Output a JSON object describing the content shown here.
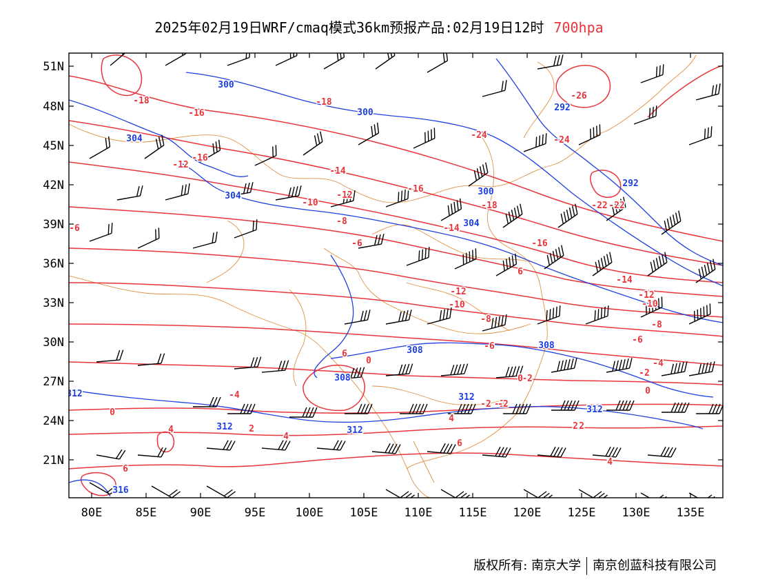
{
  "header": {
    "title": "2025年02月19日WRF/cmaq模式36km预报产品:02月19日12时",
    "level": "700hpa"
  },
  "axes": {
    "lat_labels": [
      "51N",
      "48N",
      "45N",
      "42N",
      "39N",
      "36N",
      "33N",
      "30N",
      "27N",
      "24N",
      "21N"
    ],
    "lon_labels": [
      "80E",
      "85E",
      "90E",
      "95E",
      "100E",
      "105E",
      "110E",
      "115E",
      "120E",
      "125E",
      "130E",
      "135E"
    ]
  },
  "colors": {
    "temperature_contour": "#e8343a",
    "geopotential_contour": "#1e3fe0",
    "boundary": "#e09040",
    "wind_barb": "#000000",
    "level_text": "#e8343a"
  },
  "contour_labels": {
    "temperature": [
      "-18",
      "-16",
      "-18",
      "-16",
      "-12",
      "-14",
      "-10",
      "-12",
      "-16",
      "-14",
      "-18",
      "-8",
      "-6",
      "-6",
      "-16",
      "-24",
      "-24",
      "-26",
      "-22",
      "-22",
      "-12",
      "-14",
      "-10",
      "-12",
      "-10",
      "-8",
      "-8",
      "-6",
      "-6",
      "-4",
      "-2",
      "-2",
      "-2",
      "0",
      "0",
      "0",
      "-4",
      "2",
      "2",
      "4",
      "4",
      "4",
      "6",
      "6",
      "6",
      "6",
      "6",
      "-2",
      "2",
      "-2",
      "0",
      "2",
      "4",
      "6"
    ],
    "geopotential": [
      "300",
      "300",
      "304",
      "304",
      "300",
      "292",
      "292",
      "304",
      "308",
      "308",
      "308",
      "312",
      "312",
      "312",
      "312",
      "316",
      "312"
    ]
  },
  "footer": {
    "copyright_left": "版权所有: 南京大学",
    "copyright_right": "南京创蓝科技有限公司"
  }
}
